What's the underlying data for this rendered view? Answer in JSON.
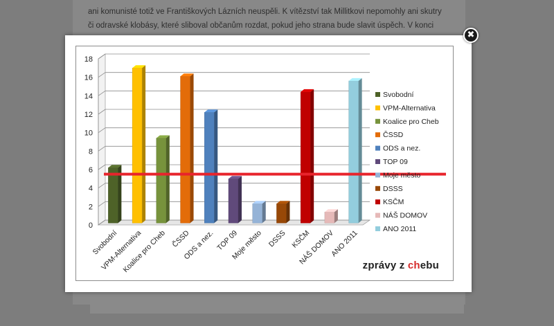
{
  "background": {
    "line1": "ani komunisté totiž ve Františkových Lázních neuspěli. K vítězství tak Millitkovi nepomohly ani skutry",
    "line2": "či odravské klobásy, které sliboval občanům rozdat, pokud jeho strana bude slavit úspěch. V konci"
  },
  "modal": {
    "close_icon": "✖",
    "brand_prefix": "zprávy z ",
    "brand_accent": "ch",
    "brand_suffix": "ebu"
  },
  "chart_data": {
    "type": "bar",
    "categories": [
      "Svobodní",
      "VPM-Alternativa",
      "Koalice pro Cheb",
      "ČSSD",
      "ODS a nez.",
      "TOP 09",
      "Moje město",
      "DSSS",
      "KSČM",
      "NÁŠ DOMOV",
      "ANO 2011"
    ],
    "values": [
      6,
      16.8,
      9.2,
      15.9,
      12,
      4.8,
      2.1,
      2.1,
      14.2,
      1.2,
      15.4
    ],
    "colors": [
      "#4e6228",
      "#ffc000",
      "#77933c",
      "#e36c09",
      "#4f81bd",
      "#604a7b",
      "#95b3d7",
      "#984807",
      "#c00000",
      "#e6b9b8",
      "#93cddd"
    ],
    "ylim": [
      0,
      18
    ],
    "yticks": [
      0,
      2,
      4,
      6,
      8,
      10,
      12,
      14,
      16,
      18
    ],
    "threshold": 5.5,
    "threshold_color": "#e8242c",
    "grid": true,
    "legend_position": "right",
    "title": "",
    "xlabel": "",
    "ylabel": ""
  }
}
